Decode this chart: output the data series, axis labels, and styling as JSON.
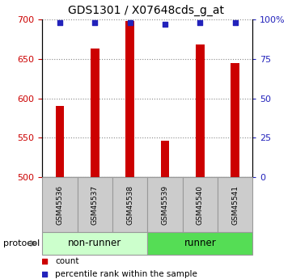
{
  "title": "GDS1301 / X07648cds_g_at",
  "samples": [
    "GSM45536",
    "GSM45537",
    "GSM45538",
    "GSM45539",
    "GSM45540",
    "GSM45541"
  ],
  "counts": [
    590,
    663,
    698,
    546,
    668,
    645
  ],
  "percentile_ranks": [
    98,
    98,
    98,
    97,
    98,
    98
  ],
  "ylim_left": [
    500,
    700
  ],
  "ylim_right": [
    0,
    100
  ],
  "yticks_left": [
    500,
    550,
    600,
    650,
    700
  ],
  "yticks_right": [
    0,
    25,
    50,
    75,
    100
  ],
  "yticklabels_right": [
    "0",
    "25",
    "50",
    "75",
    "100%"
  ],
  "bar_color": "#cc0000",
  "dot_color": "#2222bb",
  "groups": [
    {
      "label": "non-runner",
      "start": 0,
      "end": 3,
      "color": "#ccffcc"
    },
    {
      "label": "runner",
      "start": 3,
      "end": 6,
      "color": "#55dd55"
    }
  ],
  "protocol_label": "protocol",
  "legend_count_label": "count",
  "legend_pct_label": "percentile rank within the sample",
  "sample_box_color": "#cccccc",
  "bar_width": 0.25
}
